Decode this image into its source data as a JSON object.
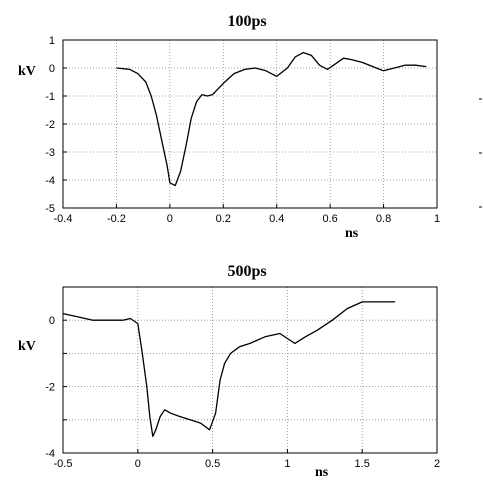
{
  "chart_data": [
    {
      "type": "line",
      "title": "100ps",
      "xlabel": "ns",
      "ylabel": "kV",
      "xlim": [
        -0.4,
        1.0
      ],
      "ylim": [
        -5,
        1
      ],
      "xticks": [
        -0.4,
        -0.2,
        0,
        0.2,
        0.4,
        0.6,
        0.8,
        1
      ],
      "xtick_labels": [
        "-0.4",
        "-0.2",
        "0",
        "0.2",
        "0.4",
        "0.6",
        "0.8",
        "1"
      ],
      "yticks": [
        1,
        0,
        -1,
        -2,
        -3,
        -4,
        -5
      ],
      "ytick_labels": [
        "1",
        "0",
        "-1",
        "-2",
        "-3",
        "-4",
        "-5"
      ],
      "grid": true,
      "series": [
        {
          "x": [
            -0.2,
            -0.15,
            -0.12,
            -0.09,
            -0.07,
            -0.05,
            -0.03,
            -0.01,
            0.0,
            0.02,
            0.04,
            0.06,
            0.08,
            0.1,
            0.12,
            0.14,
            0.16,
            0.2,
            0.24,
            0.28,
            0.32,
            0.36,
            0.4,
            0.44,
            0.47,
            0.5,
            0.53,
            0.56,
            0.59,
            0.62,
            0.65,
            0.68,
            0.72,
            0.76,
            0.8,
            0.84,
            0.88,
            0.92,
            0.96
          ],
          "y": [
            0.0,
            -0.05,
            -0.2,
            -0.5,
            -1.0,
            -1.7,
            -2.6,
            -3.5,
            -4.1,
            -4.2,
            -3.7,
            -2.8,
            -1.8,
            -1.2,
            -0.95,
            -1.0,
            -0.95,
            -0.55,
            -0.2,
            -0.05,
            0.0,
            -0.1,
            -0.3,
            0.0,
            0.4,
            0.55,
            0.45,
            0.1,
            -0.05,
            0.15,
            0.35,
            0.3,
            0.2,
            0.05,
            -0.1,
            0.0,
            0.1,
            0.1,
            0.05
          ]
        }
      ]
    },
    {
      "type": "line",
      "title": "500ps",
      "xlabel": "ns",
      "ylabel": "kV",
      "xlim": [
        -0.5,
        2.0
      ],
      "ylim": [
        -4,
        1
      ],
      "xticks": [
        -0.5,
        0,
        0.5,
        1,
        1.5,
        2
      ],
      "xtick_labels": [
        "-0.5",
        "0",
        "0.5",
        "1",
        "1.5",
        "2"
      ],
      "yticks": [
        0,
        -2,
        -4
      ],
      "ytick_labels": [
        "0",
        "-2",
        "-4"
      ],
      "grid": true,
      "series": [
        {
          "x": [
            -0.5,
            -0.4,
            -0.3,
            -0.2,
            -0.1,
            -0.05,
            0.0,
            0.03,
            0.06,
            0.08,
            0.1,
            0.12,
            0.15,
            0.18,
            0.22,
            0.28,
            0.35,
            0.42,
            0.48,
            0.52,
            0.55,
            0.58,
            0.62,
            0.68,
            0.75,
            0.85,
            0.95,
            1.0,
            1.05,
            1.12,
            1.2,
            1.3,
            1.4,
            1.5,
            1.58,
            1.65,
            1.72
          ],
          "y": [
            0.2,
            0.1,
            0.0,
            0.0,
            0.0,
            0.05,
            -0.1,
            -1.0,
            -2.0,
            -2.9,
            -3.5,
            -3.3,
            -2.9,
            -2.7,
            -2.8,
            -2.9,
            -3.0,
            -3.1,
            -3.3,
            -2.8,
            -1.8,
            -1.3,
            -1.0,
            -0.8,
            -0.7,
            -0.5,
            -0.4,
            -0.55,
            -0.7,
            -0.5,
            -0.3,
            0.0,
            0.35,
            0.55,
            0.55,
            0.55,
            0.55
          ]
        }
      ]
    }
  ]
}
